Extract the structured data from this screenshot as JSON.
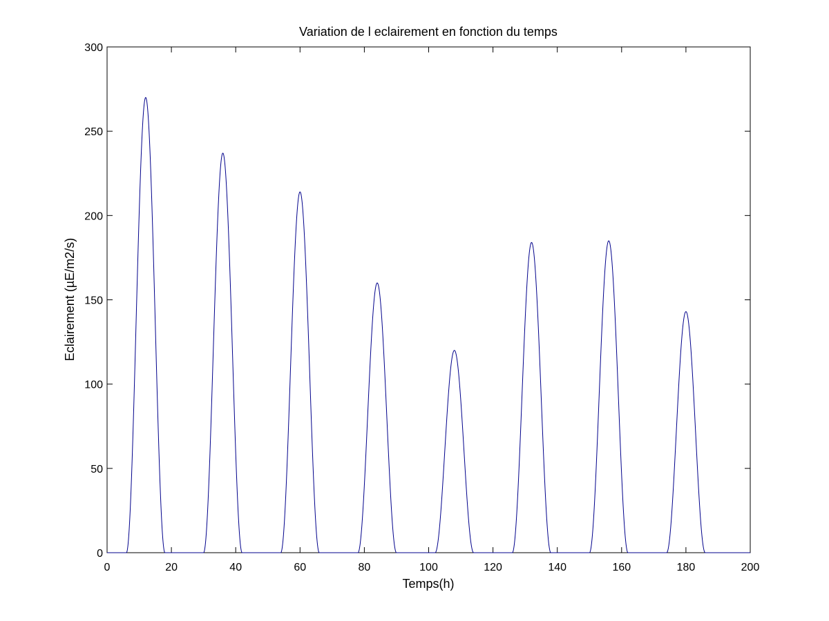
{
  "chart_data": {
    "type": "line",
    "title": "Variation de l eclairement en fonction du temps",
    "xlabel": "Temps(h)",
    "ylabel": "Eclairement (µE/m2/s)",
    "xlim": [
      0,
      200
    ],
    "ylim": [
      0,
      300
    ],
    "xticks": [
      "0",
      "20",
      "40",
      "60",
      "80",
      "100",
      "120",
      "140",
      "160",
      "180",
      "200"
    ],
    "yticks": [
      "0",
      "50",
      "100",
      "150",
      "200",
      "250",
      "300"
    ],
    "grid": false,
    "legend": "none",
    "line_color": "#00008b",
    "pattern": "daily pulses: zero at night, sine-squared arch between 06:00 and 18:00 each day",
    "day_period_h": 24,
    "light_on_h": 6,
    "light_off_h": 18,
    "series": [
      {
        "peaks": [
          {
            "x": 12,
            "y": 270
          },
          {
            "x": 36,
            "y": 237
          },
          {
            "x": 60,
            "y": 214
          },
          {
            "x": 84,
            "y": 160
          },
          {
            "x": 108,
            "y": 120
          },
          {
            "x": 132,
            "y": 184
          },
          {
            "x": 156,
            "y": 185
          },
          {
            "x": 180,
            "y": 143
          }
        ]
      }
    ]
  }
}
